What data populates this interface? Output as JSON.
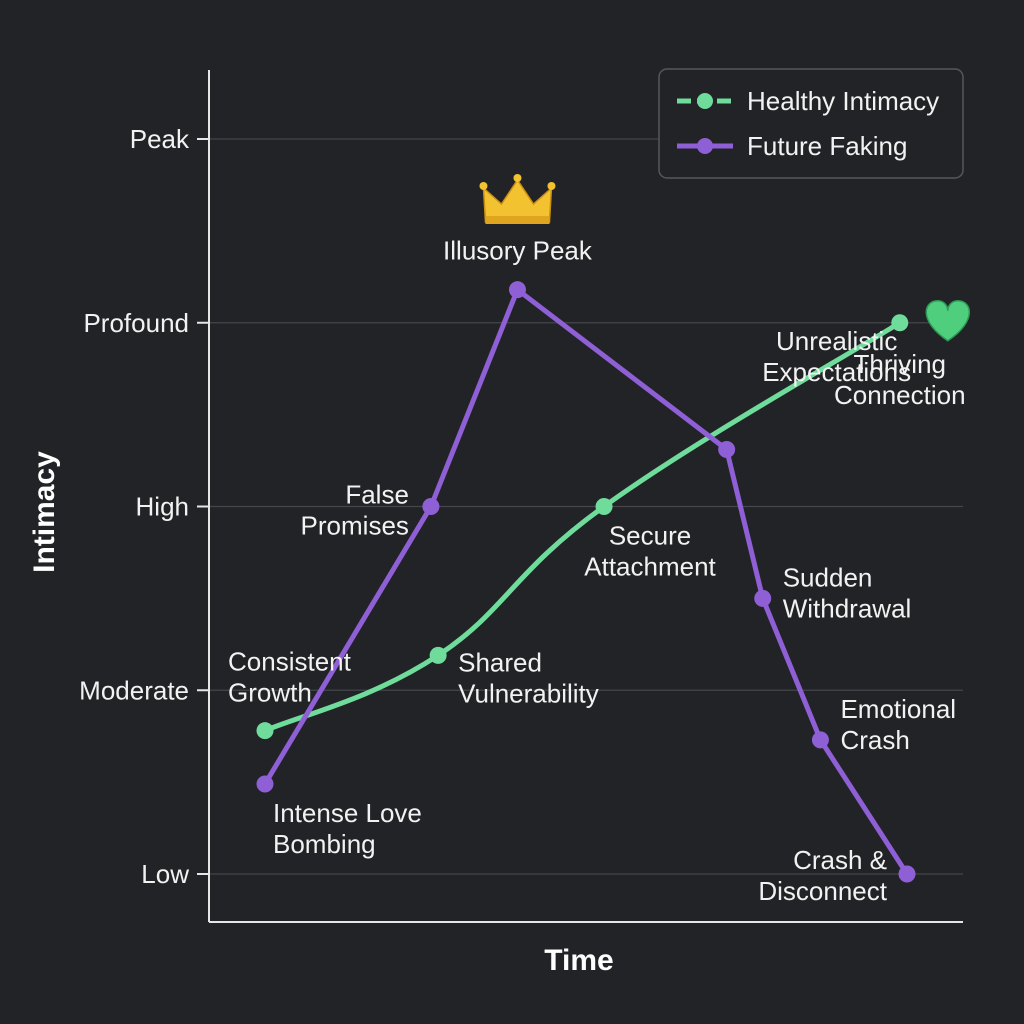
{
  "chart_data": {
    "type": "line",
    "title": "",
    "xlabel": "Time",
    "ylabel": "Intimacy",
    "y_levels": [
      "Low",
      "Moderate",
      "High",
      "Profound",
      "Peak"
    ],
    "ylim": [
      0,
      4
    ],
    "xlim": [
      0,
      10
    ],
    "grid": true,
    "legend_position": "top-right",
    "series": [
      {
        "name": "Healthy Intimacy",
        "color": "#6fdc9c",
        "points": [
          {
            "x": 0.0,
            "y": 0.78,
            "label": "Consistent Growth"
          },
          {
            "x": 2.4,
            "y": 1.19,
            "label": "Shared Vulnerability"
          },
          {
            "x": 4.7,
            "y": 2.0,
            "label": "Secure Attachment"
          },
          {
            "x": 8.8,
            "y": 3.0,
            "label": "Thriving Connection"
          }
        ]
      },
      {
        "name": "Future Faking",
        "color": "#8f5fd6",
        "points": [
          {
            "x": 0.0,
            "y": 0.49,
            "label": "Intense Love Bombing"
          },
          {
            "x": 2.3,
            "y": 2.0,
            "label": "False Promises"
          },
          {
            "x": 3.5,
            "y": 3.18,
            "label": "Illusory Peak"
          },
          {
            "x": 6.4,
            "y": 2.31,
            "label": "Unrealistic Expectations"
          },
          {
            "x": 6.9,
            "y": 1.5,
            "label": "Sudden Withdrawal"
          },
          {
            "x": 7.7,
            "y": 0.73,
            "label": "Emotional Crash"
          },
          {
            "x": 8.9,
            "y": 0.0,
            "label": "Crash & Disconnect"
          }
        ]
      }
    ],
    "annotations": [
      {
        "icon": "crown-icon",
        "color": "#f2c230",
        "near": "Illusory Peak"
      },
      {
        "icon": "heart-icon",
        "color": "#4fcf7e",
        "near": "Thriving Connection"
      }
    ]
  },
  "colors": {
    "background": "#222326",
    "grid": "#44464b",
    "axis": "#e6e6e6"
  }
}
